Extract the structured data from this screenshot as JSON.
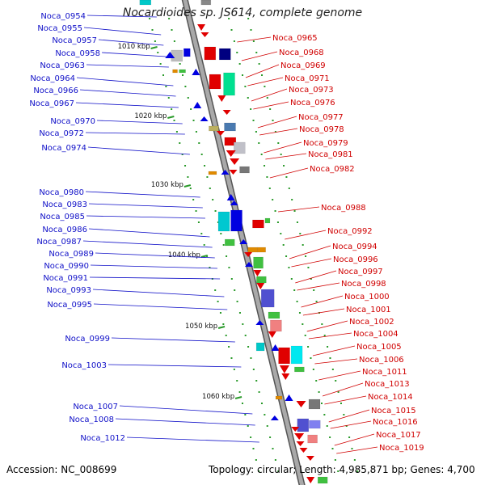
{
  "title": "Nocardioides sp. JS614, complete genome",
  "footer": {
    "accession": "Accession: NC_008699",
    "info": "Topology: circular; Length: 4,985,871 bp; Genes: 4,700"
  },
  "colors": {
    "backbone": "#9a9a9a",
    "backbone_edge": "#555555",
    "reverse_strand_labels": "#1010c8",
    "forward_strand_labels": "#d00000",
    "tick": "#2a9a2a"
  },
  "kbp_ticks": [
    "1010 kbp",
    "1020 kbp",
    "1030 kbp",
    "1040 kbp",
    "1050 kbp",
    "1060 kbp"
  ],
  "left_genes": [
    "Noca_0954",
    "Noca_0955",
    "Noca_0957",
    "Noca_0958",
    "Noca_0963",
    "Noca_0964",
    "Noca_0966",
    "Noca_0967",
    "Noca_0970",
    "Noca_0972",
    "Noca_0974",
    "Noca_0980",
    "Noca_0983",
    "Noca_0985",
    "Noca_0986",
    "Noca_0987",
    "Noca_0989",
    "Noca_0990",
    "Noca_0991",
    "Noca_0993",
    "Noca_0995",
    "Noca_0999",
    "Noca_1003",
    "Noca_1007",
    "Noca_1008",
    "Noca_1012"
  ],
  "right_genes": [
    "Noca_0965",
    "Noca_0968",
    "Noca_0969",
    "Noca_0971",
    "Noca_0973",
    "Noca_0976",
    "Noca_0977",
    "Noca_0978",
    "Noca_0979",
    "Noca_0981",
    "Noca_0982",
    "Noca_0988",
    "Noca_0992",
    "Noca_0994",
    "Noca_0996",
    "Noca_0997",
    "Noca_0998",
    "Noca_1000",
    "Noca_1001",
    "Noca_1002",
    "Noca_1004",
    "Noca_1005",
    "Noca_1006",
    "Noca_1011",
    "Noca_1013",
    "Noca_1014",
    "Noca_1015",
    "Noca_1016",
    "Noca_1017",
    "Noca_1019"
  ]
}
